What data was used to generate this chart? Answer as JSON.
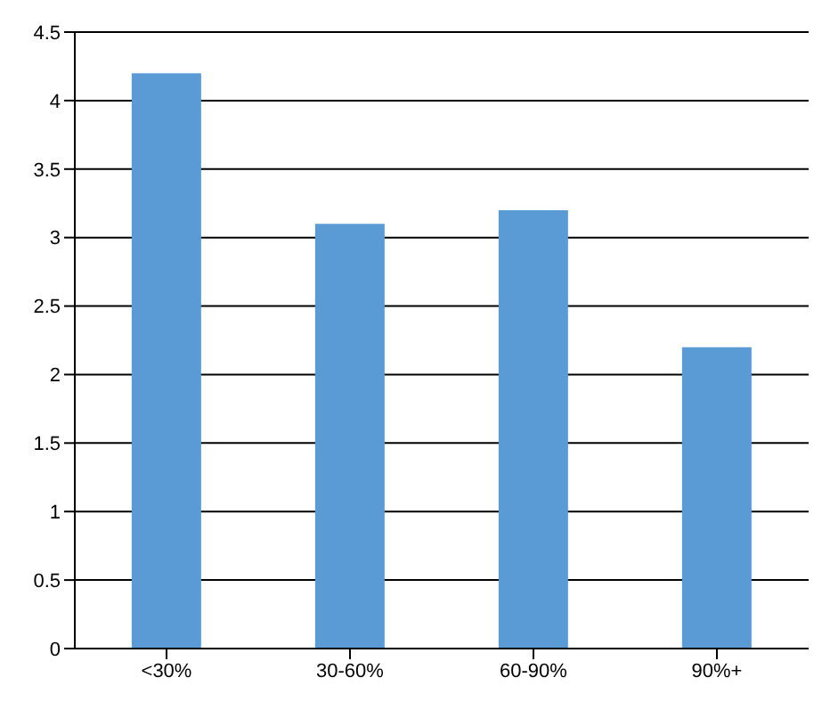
{
  "chart_data": {
    "type": "bar",
    "categories": [
      "<30%",
      "30-60%",
      "60-90%",
      "90%+"
    ],
    "values": [
      4.2,
      3.1,
      3.2,
      2.2
    ],
    "color": "#5b9bd5",
    "ylim": [
      0,
      4.5
    ],
    "yticks": [
      0,
      0.5,
      1,
      1.5,
      2,
      2.5,
      3,
      3.5,
      4,
      4.5
    ],
    "grid": "y"
  }
}
